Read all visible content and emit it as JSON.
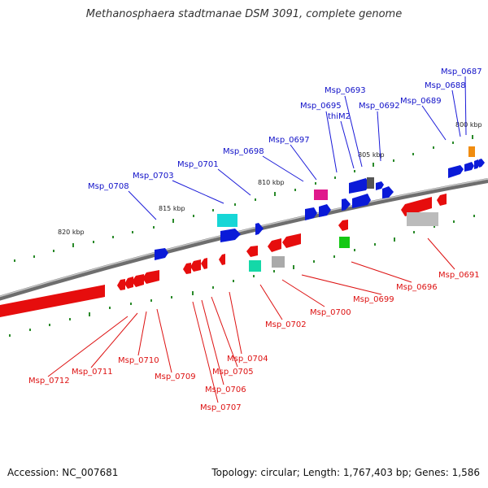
{
  "title": "Methanosphaera stadtmanae DSM 3091, complete genome",
  "footer": {
    "accession": "Accession: NC_007681",
    "summary": "Topology: circular; Length: 1,767,403 bp; Genes: 1,586"
  },
  "colors": {
    "forward_label": "#1010c8",
    "reverse_label": "#dd1111",
    "forward_gene": "#0a1ad8",
    "reverse_gene": "#e60d0d",
    "tick": "#2a8a2a",
    "backbone": "#888888"
  },
  "scale_labels": [
    "800 kbp",
    "805 kbp",
    "810 kbp",
    "815 kbp",
    "820 kbp"
  ],
  "forward_genes": [
    "Msp_0687",
    "Msp_0688",
    "Msp_0689",
    "Msp_0692",
    "Msp_0693",
    "thiM2",
    "Msp_0695",
    "Msp_0697",
    "Msp_0698",
    "Msp_0701",
    "Msp_0703",
    "Msp_0708"
  ],
  "reverse_genes": [
    "Msp_0691",
    "Msp_0696",
    "Msp_0699",
    "Msp_0700",
    "Msp_0702",
    "Msp_0704",
    "Msp_0705",
    "Msp_0706",
    "Msp_0707",
    "Msp_0709",
    "Msp_0710",
    "Msp_0711",
    "Msp_0712"
  ]
}
